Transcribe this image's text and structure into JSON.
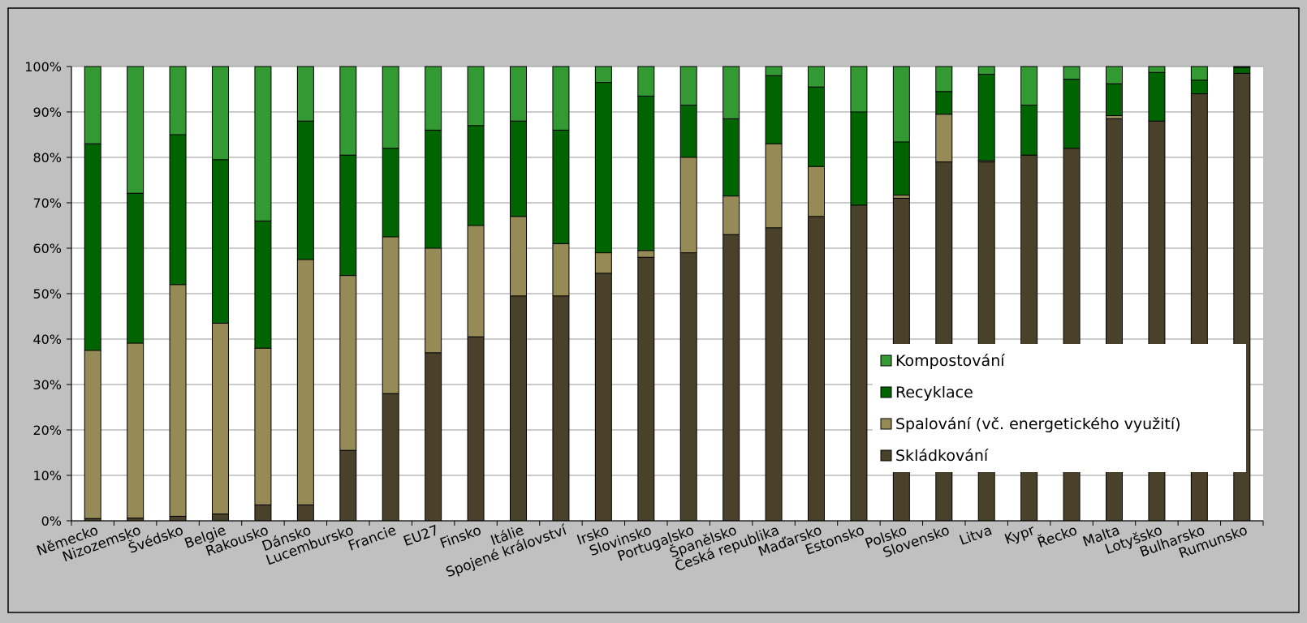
{
  "chart_data": {
    "type": "bar",
    "stacked": true,
    "percent": true,
    "title": "",
    "xlabel": "",
    "ylabel": "",
    "ylim": [
      0,
      100
    ],
    "y_ticks": [
      "0%",
      "10%",
      "20%",
      "30%",
      "40%",
      "50%",
      "60%",
      "70%",
      "80%",
      "90%",
      "100%"
    ],
    "grid": true,
    "legend_position": "bottom-right inside plot",
    "categories": [
      "Německo",
      "Nizozemsko",
      "Švédsko",
      "Belgie",
      "Rakousko",
      "Dánsko",
      "Lucembursko",
      "Francie",
      "EU27",
      "Finsko",
      "Itálie",
      "Spojené království",
      "Irsko",
      "Slovinsko",
      "Portugalsko",
      "Španělsko",
      "Česká republika",
      "Maďarsko",
      "Estonsko",
      "Polsko",
      "Slovensko",
      "Litva",
      "Kypr",
      "Řecko",
      "Malta",
      "Lotyšsko",
      "Bulharsko",
      "Rumunsko"
    ],
    "series": [
      {
        "name": "Skládkování",
        "color": "#4a412a",
        "values": [
          0.5,
          0.6,
          1,
          1.5,
          3.5,
          3.5,
          15.5,
          28,
          37,
          40.5,
          49.5,
          49.5,
          54.5,
          58,
          59,
          63,
          64.5,
          67,
          69.5,
          71,
          79,
          79,
          80.5,
          82,
          88.5,
          88,
          94,
          98.5
        ]
      },
      {
        "name": "Spalování (vč. energetického využití)",
        "color": "#968a57",
        "values": [
          37,
          38.5,
          51,
          42,
          34.5,
          54,
          38.5,
          34.5,
          23,
          24.5,
          17.5,
          11.5,
          4.5,
          1.5,
          21,
          8.5,
          18.5,
          11,
          0,
          0.7,
          10.5,
          0.3,
          0,
          0,
          0.7,
          0,
          0,
          0
        ]
      },
      {
        "name": "Recyklace",
        "color": "#006400",
        "values": [
          45.5,
          33,
          33,
          36,
          28,
          30.5,
          26.5,
          19.5,
          26,
          22,
          21,
          25,
          37.5,
          34,
          11.5,
          17,
          15,
          17.5,
          20.5,
          11.7,
          5,
          19,
          11,
          15.2,
          7,
          10.7,
          3,
          1.3
        ]
      },
      {
        "name": "Kompostování",
        "color": "#339933",
        "values": [
          17,
          27.9,
          15,
          20.5,
          34,
          12,
          19.5,
          18,
          14,
          13,
          12,
          14,
          3.5,
          6.5,
          8.5,
          11.5,
          2,
          4.5,
          10,
          16.6,
          5.5,
          1.7,
          8.5,
          2.8,
          3.8,
          1.3,
          3,
          0.2
        ]
      }
    ]
  }
}
